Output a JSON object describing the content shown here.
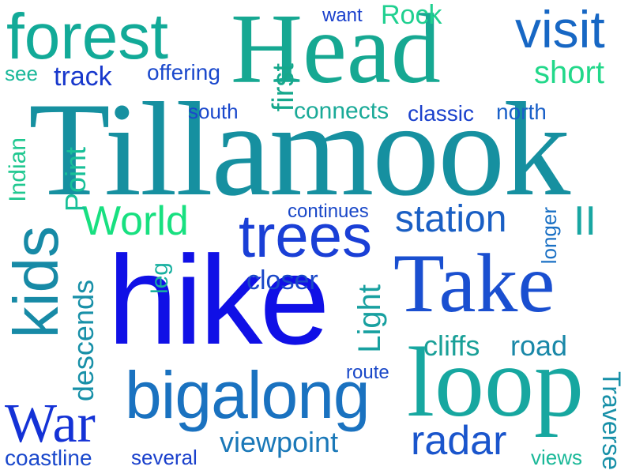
{
  "words": [
    {
      "id": "tillamook",
      "text": "Tillamook",
      "color": "#1690a0"
    },
    {
      "id": "head",
      "text": "Head",
      "color": "#16a892"
    },
    {
      "id": "hike",
      "text": "hike",
      "color": "#1010e6"
    },
    {
      "id": "take",
      "text": "Take",
      "color": "#1a4fd0"
    },
    {
      "id": "loop",
      "text": "loop",
      "color": "#17a7a0"
    },
    {
      "id": "bigalong",
      "text": "bigalong",
      "color": "#1a72c0"
    },
    {
      "id": "forest",
      "text": "forest",
      "color": "#12aa98"
    },
    {
      "id": "visit",
      "text": "visit",
      "color": "#1767c4"
    },
    {
      "id": "trees",
      "text": "trees",
      "color": "#1a3fd6"
    },
    {
      "id": "kids",
      "text": "kids",
      "color": "#178aa6"
    },
    {
      "id": "war",
      "text": "War",
      "color": "#1432d6"
    },
    {
      "id": "world",
      "text": "World",
      "color": "#18e080"
    },
    {
      "id": "station",
      "text": "station",
      "color": "#1a5fc4"
    },
    {
      "id": "radar",
      "text": "radar",
      "color": "#1a55cc"
    },
    {
      "id": "ii",
      "text": "II",
      "color": "#18a6a2"
    },
    {
      "id": "rock",
      "text": "Rock",
      "color": "#20d090"
    },
    {
      "id": "short",
      "text": "short",
      "color": "#22d88a"
    },
    {
      "id": "want",
      "text": "want",
      "color": "#1a40cc"
    },
    {
      "id": "see",
      "text": "see",
      "color": "#1ab89a"
    },
    {
      "id": "track",
      "text": "track",
      "color": "#1838cc"
    },
    {
      "id": "offering",
      "text": "offering",
      "color": "#1a48cc"
    },
    {
      "id": "south",
      "text": "south",
      "color": "#1a48cc"
    },
    {
      "id": "first",
      "text": "first",
      "color": "#16a88c"
    },
    {
      "id": "connects",
      "text": "connects",
      "color": "#1aaa98"
    },
    {
      "id": "classic",
      "text": "classic",
      "color": "#1a40cc"
    },
    {
      "id": "north",
      "text": "north",
      "color": "#1a60c8"
    },
    {
      "id": "indian",
      "text": "Indian",
      "color": "#20c890"
    },
    {
      "id": "point",
      "text": "Point",
      "color": "#18c098"
    },
    {
      "id": "continues",
      "text": "continues",
      "color": "#1a48c8"
    },
    {
      "id": "longer",
      "text": "longer",
      "color": "#1a70c4"
    },
    {
      "id": "leg",
      "text": "leg",
      "color": "#18b0a0"
    },
    {
      "id": "closer",
      "text": "closer",
      "color": "#1a48c8"
    },
    {
      "id": "descends",
      "text": "descends",
      "color": "#1890a8"
    },
    {
      "id": "light",
      "text": "Light",
      "color": "#18a0a0"
    },
    {
      "id": "cliffs",
      "text": "cliffs",
      "color": "#1aa098"
    },
    {
      "id": "road",
      "text": "road",
      "color": "#1a88a8"
    },
    {
      "id": "route",
      "text": "route",
      "color": "#1a48c8"
    },
    {
      "id": "traverse",
      "text": "Traverse",
      "color": "#1890a8"
    },
    {
      "id": "viewpoint",
      "text": "viewpoint",
      "color": "#1a78b8"
    },
    {
      "id": "coastline",
      "text": "coastline",
      "color": "#1a48cc"
    },
    {
      "id": "several",
      "text": "several",
      "color": "#1a40cc"
    },
    {
      "id": "views",
      "text": "views",
      "color": "#1ab898"
    }
  ]
}
